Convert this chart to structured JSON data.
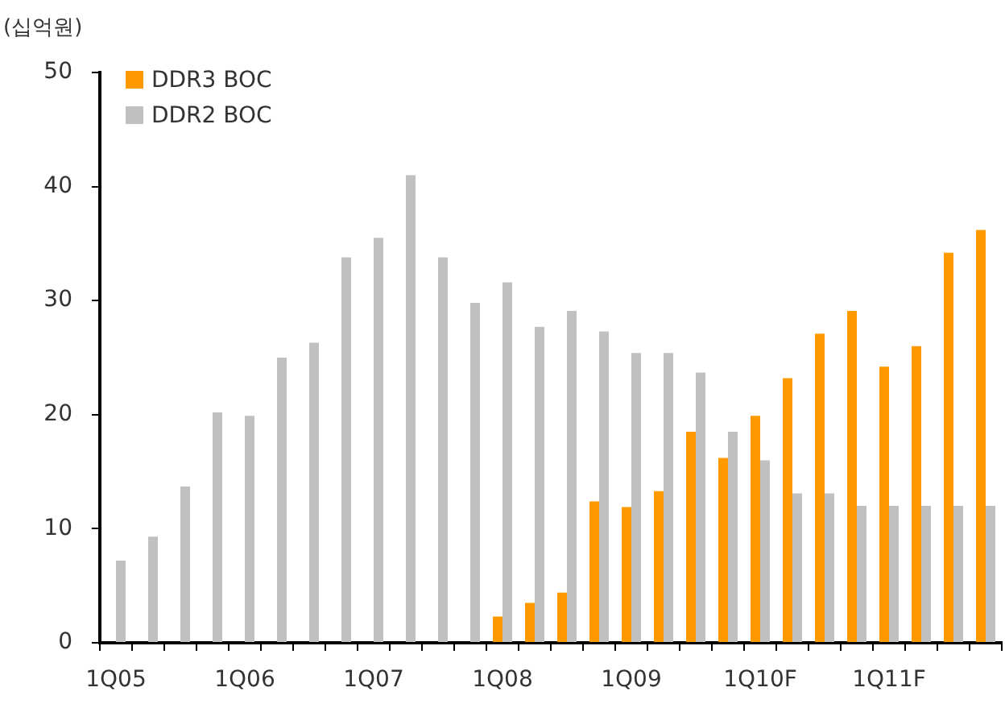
{
  "chart_data": {
    "type": "bar",
    "ylabel": "(십억원)",
    "categories": [
      "1Q05",
      null,
      null,
      null,
      "1Q06",
      null,
      null,
      null,
      "1Q07",
      null,
      null,
      null,
      "1Q08",
      null,
      null,
      null,
      "1Q09",
      null,
      null,
      null,
      "1Q10F",
      null,
      null,
      null,
      "1Q11F",
      null,
      null,
      null
    ],
    "series": [
      {
        "name": "DDR3 BOC",
        "color": "#ff9900",
        "values": [
          null,
          null,
          null,
          null,
          null,
          null,
          null,
          null,
          null,
          null,
          null,
          null,
          2.3,
          3.5,
          4.4,
          12.4,
          11.9,
          13.3,
          18.5,
          16.2,
          19.9,
          23.2,
          27.1,
          29.1,
          24.2,
          26.0,
          34.2,
          36.2
        ]
      },
      {
        "name": "DDR2 BOC",
        "color": "#c0c0c0",
        "values": [
          7.2,
          9.3,
          13.7,
          20.2,
          19.9,
          25.0,
          26.3,
          33.8,
          35.5,
          41.0,
          33.8,
          29.8,
          31.6,
          27.7,
          29.1,
          27.3,
          25.4,
          25.4,
          23.7,
          18.5,
          16.0,
          13.1,
          13.1,
          12.0,
          12.0,
          12.0,
          12.0,
          12.0
        ]
      }
    ],
    "ylim": [
      0,
      50
    ],
    "yticks": [
      0,
      10,
      20,
      30,
      40,
      50
    ],
    "grid": false,
    "legend": "top left"
  }
}
